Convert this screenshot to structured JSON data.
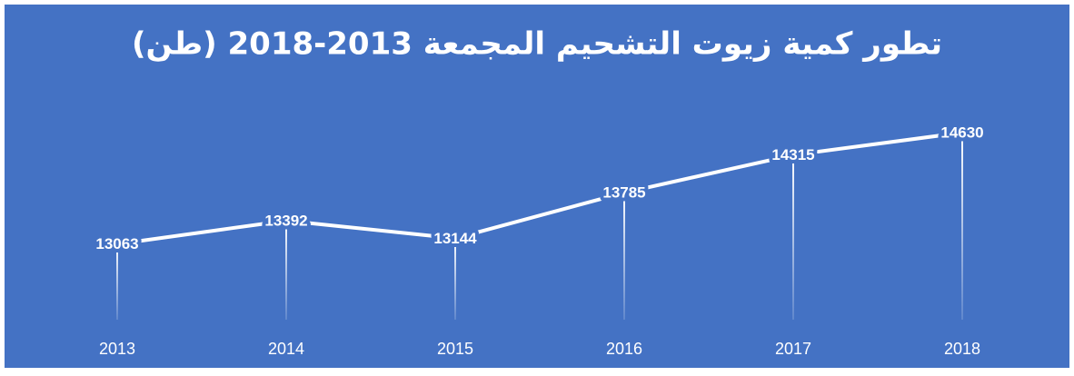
{
  "chart_data": {
    "type": "line",
    "title": "تطور كمية زيوت التشحيم المجمعة 2013-2018 (طن)",
    "categories": [
      "2013",
      "2014",
      "2015",
      "2016",
      "2017",
      "2018"
    ],
    "values": [
      13063,
      13392,
      13144,
      13785,
      14315,
      14630
    ],
    "color": "#ffffff",
    "background": "#4472c4",
    "ylim": [
      12000,
      15000
    ]
  }
}
